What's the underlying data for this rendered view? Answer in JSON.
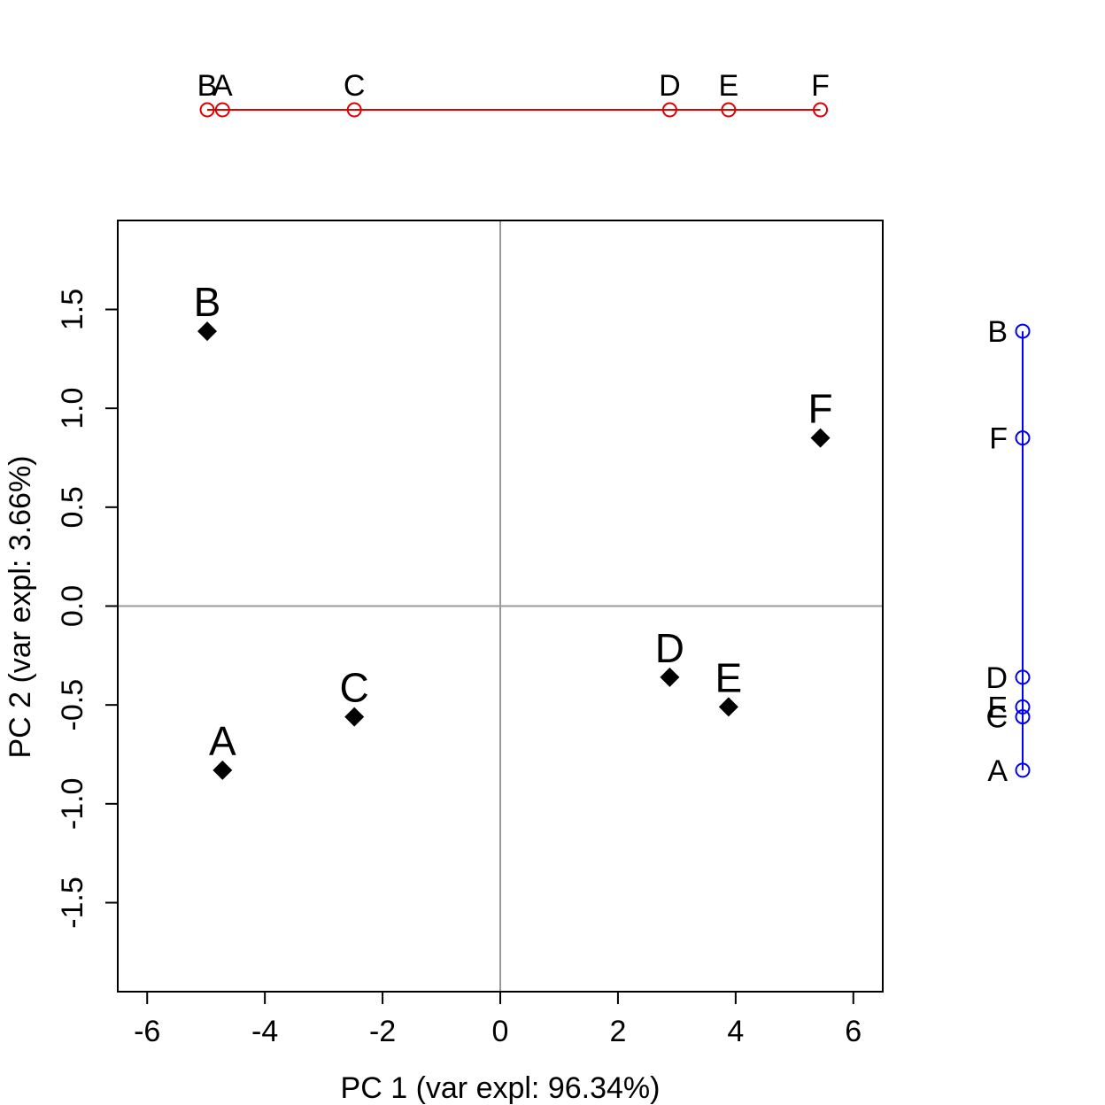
{
  "chart_data": {
    "type": "scatter",
    "title": "",
    "xlabel": "PC 1 (var expl: 96.34%)",
    "ylabel": "PC 2 (var expl: 3.66%)",
    "xlim": [
      -6.5,
      6.5
    ],
    "ylim": [
      -1.95,
      1.95
    ],
    "xticks": [
      -6,
      -4,
      -2,
      0,
      2,
      4,
      6
    ],
    "yticks": [
      -1.5,
      -1.0,
      -0.5,
      0.0,
      0.5,
      1.0,
      1.5
    ],
    "xtick_labels": [
      "-6",
      "-4",
      "-2",
      "0",
      "2",
      "4",
      "6"
    ],
    "ytick_labels": [
      "-1.5",
      "-1.0",
      "-0.5",
      "0.0",
      "0.5",
      "1.0",
      "1.5"
    ],
    "reference_lines": {
      "x": 0,
      "y": 0,
      "color": "#999999"
    },
    "point_color": "#000000",
    "points": [
      {
        "label": "A",
        "x": -4.72,
        "y": -0.83
      },
      {
        "label": "B",
        "x": -4.98,
        "y": 1.39
      },
      {
        "label": "C",
        "x": -2.48,
        "y": -0.56
      },
      {
        "label": "D",
        "x": 2.88,
        "y": -0.36
      },
      {
        "label": "E",
        "x": 3.88,
        "y": -0.51
      },
      {
        "label": "F",
        "x": 5.44,
        "y": 0.85
      }
    ],
    "marginal_pc1": {
      "color": "#dd0000"
    },
    "marginal_pc2": {
      "color": "#0000ff"
    }
  }
}
